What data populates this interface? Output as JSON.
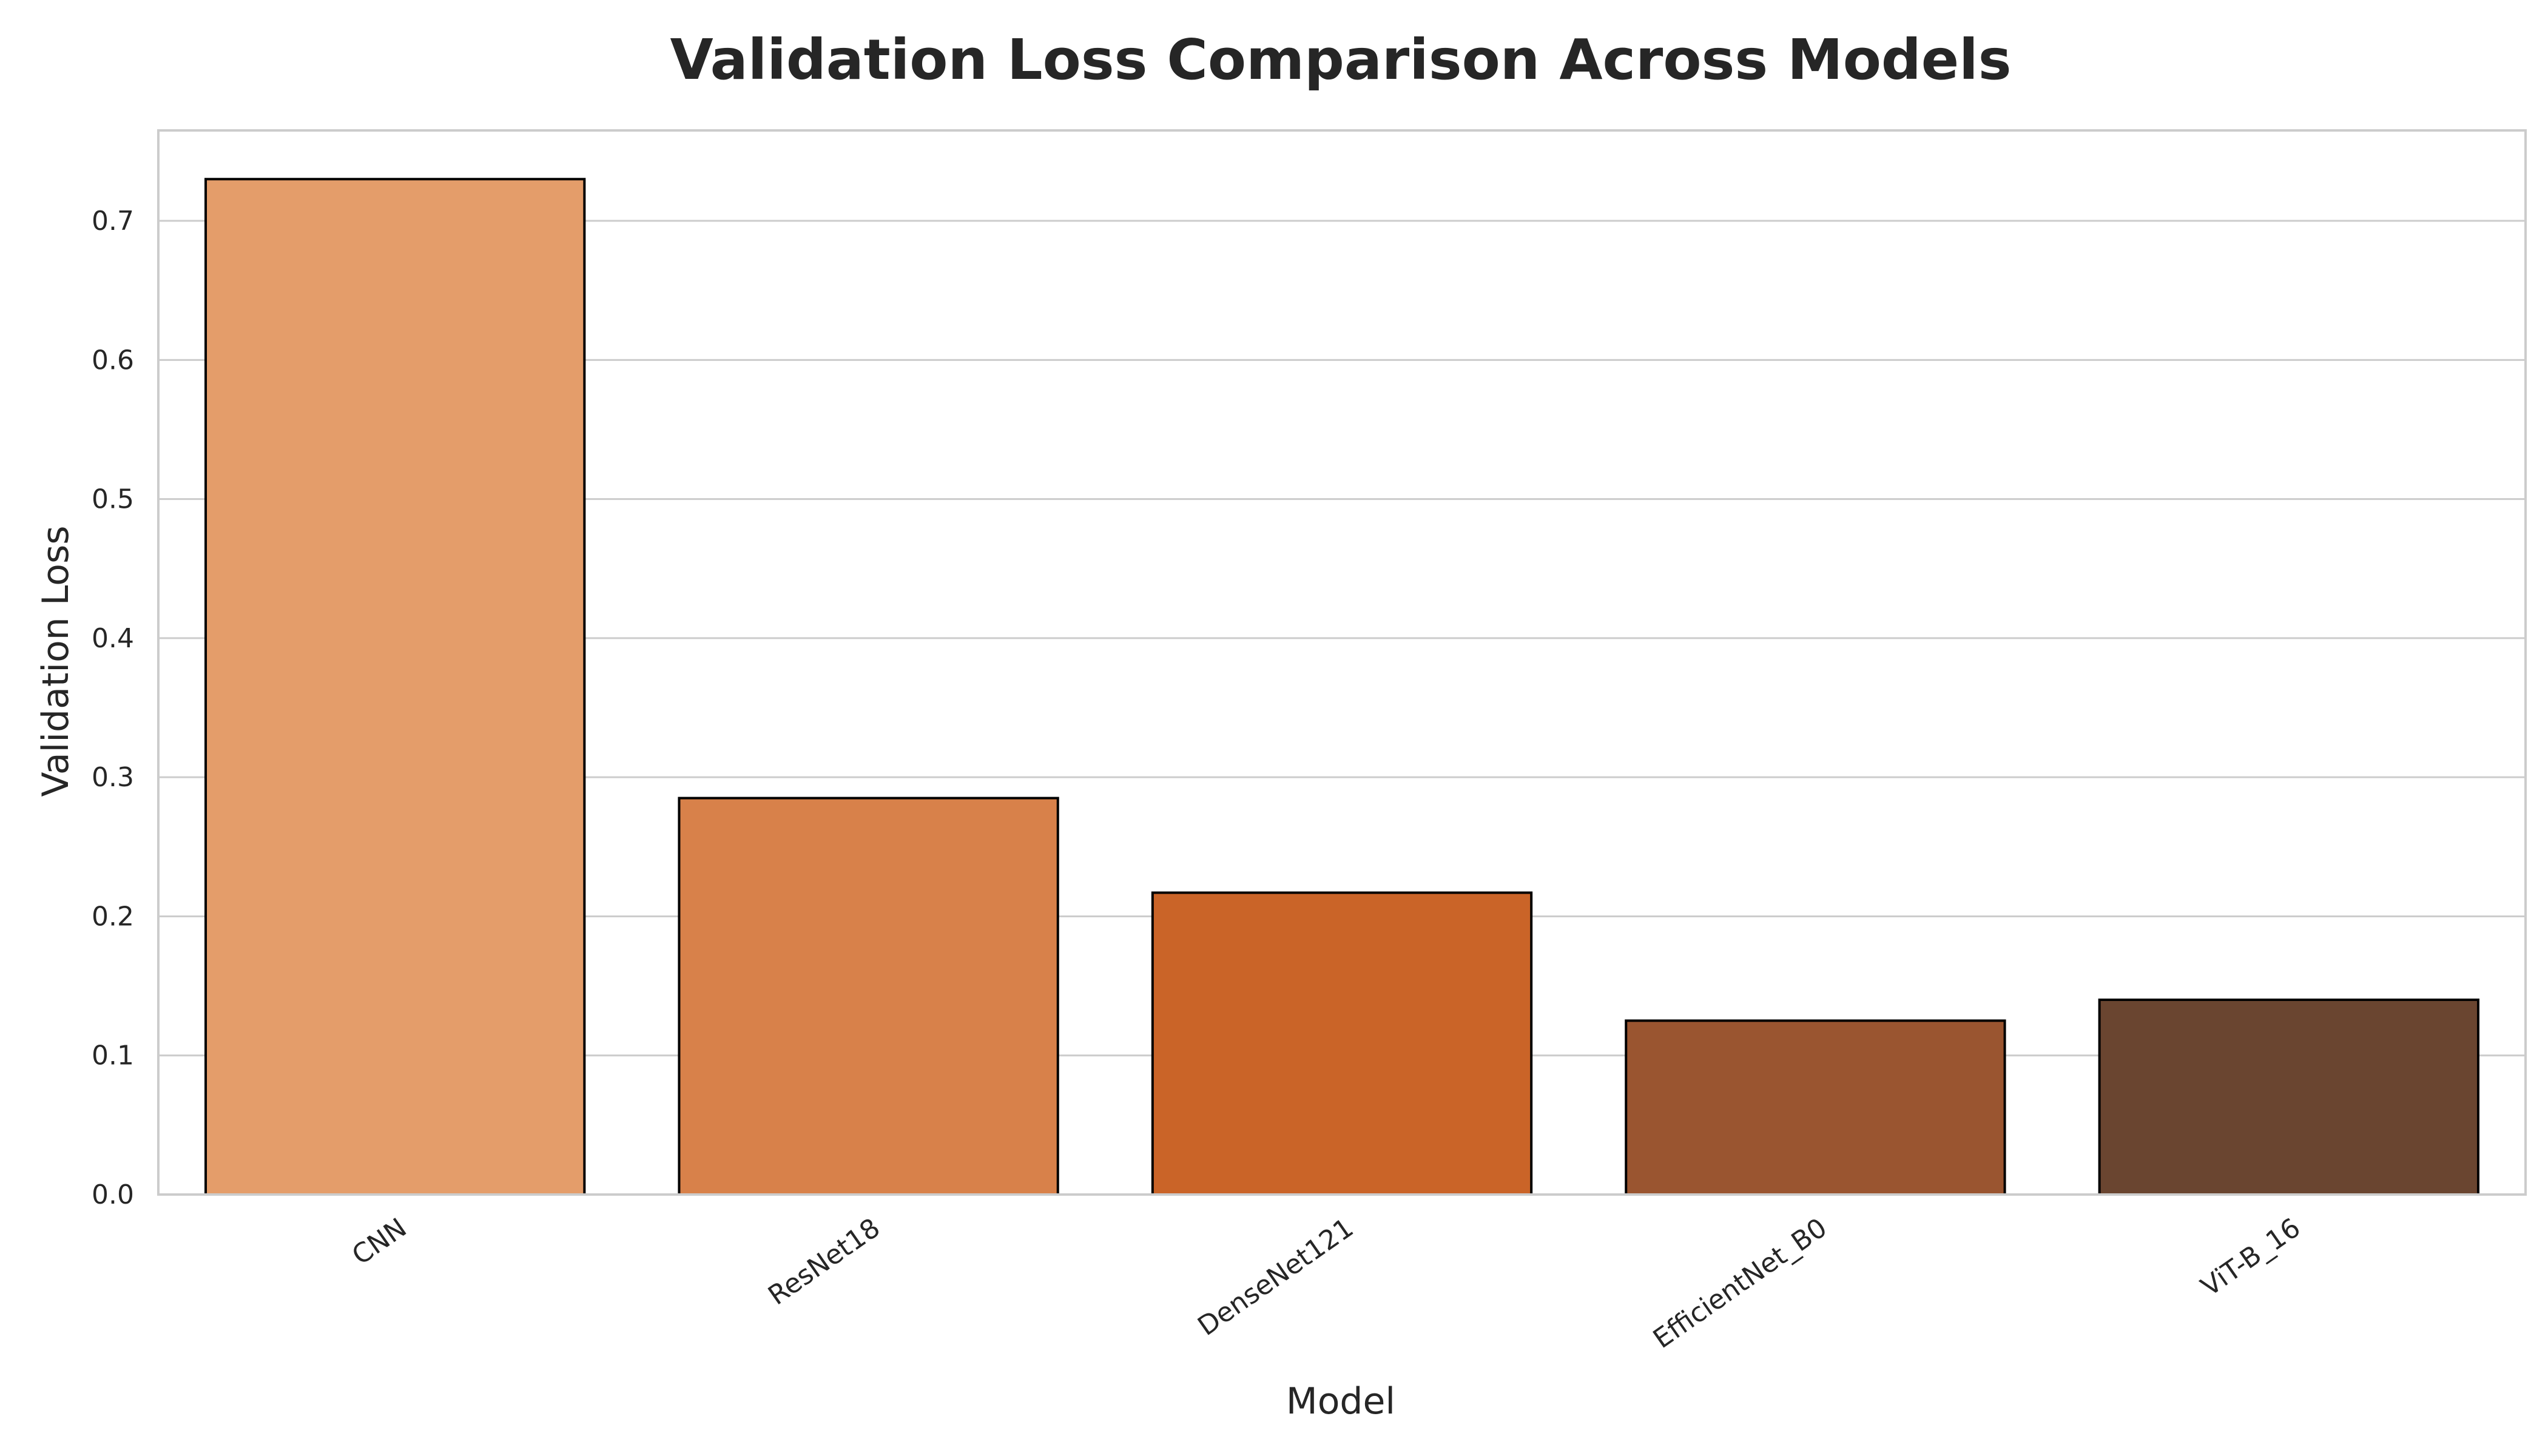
{
  "chart_data": {
    "type": "bar",
    "title": "Validation Loss Comparison Across Models",
    "xlabel": "Model",
    "ylabel": "Validation Loss",
    "categories": [
      "CNN",
      "ResNet18",
      "DenseNet121",
      "EfficientNet_B0",
      "ViT-B_16"
    ],
    "values": [
      0.73,
      0.285,
      0.217,
      0.125,
      0.14
    ],
    "ylim": [
      0,
      0.765
    ],
    "yticks": [
      0.0,
      0.1,
      0.2,
      0.3,
      0.4,
      0.5,
      0.6,
      0.7
    ],
    "ytick_labels": [
      "0.0",
      "0.1",
      "0.2",
      "0.3",
      "0.4",
      "0.5",
      "0.6",
      "0.7"
    ],
    "colors": [
      "#e49d6a",
      "#d8814a",
      "#ca6428",
      "#9a5530",
      "#6a4530"
    ],
    "grid": "y",
    "legend": "none"
  }
}
